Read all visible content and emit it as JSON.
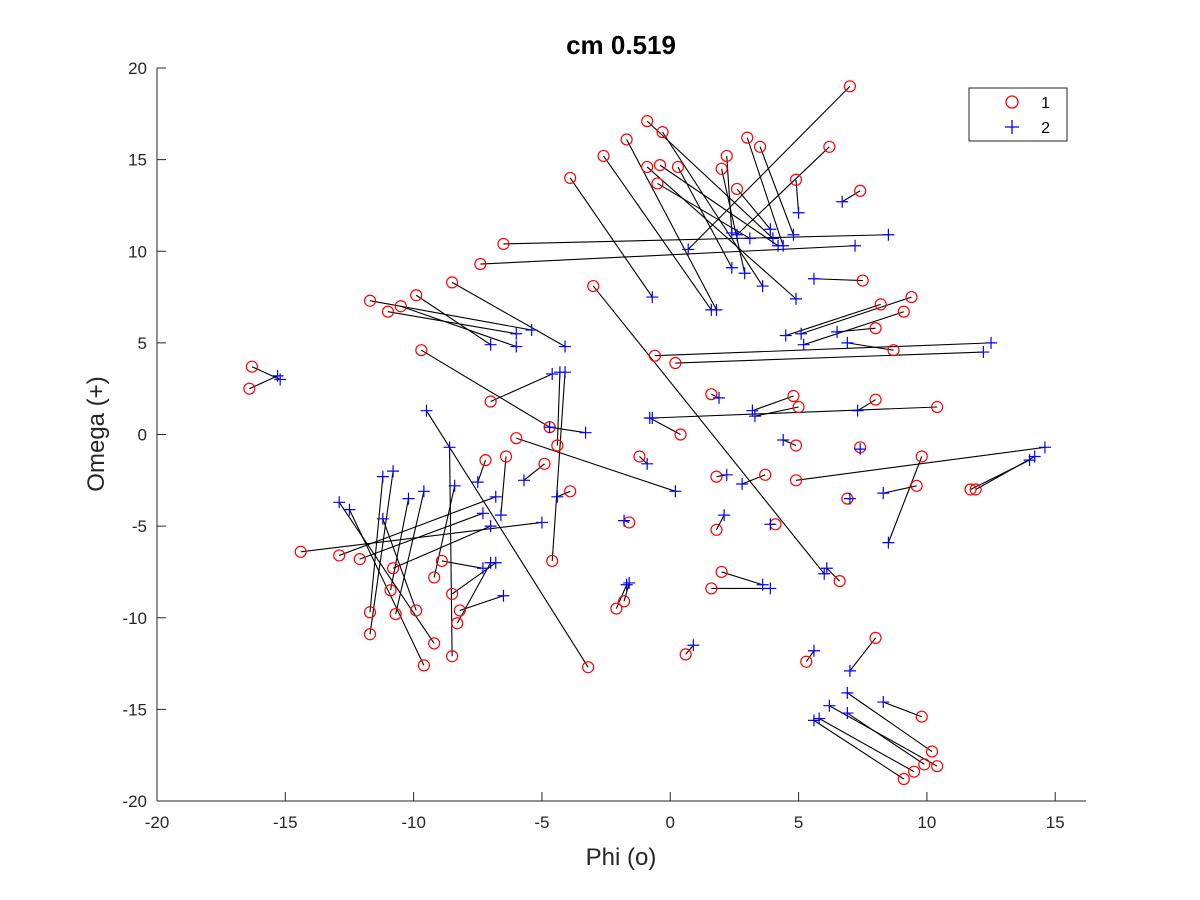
{
  "chart_data": {
    "type": "scatter",
    "title": "cm 0.519",
    "xlabel": "Phi (o)",
    "ylabel": "Omega (+)",
    "xlim": [
      -20,
      16.2
    ],
    "ylim": [
      -20,
      20
    ],
    "xticks": [
      -20,
      -15,
      -10,
      -5,
      0,
      5,
      10,
      15
    ],
    "yticks": [
      -20,
      -15,
      -10,
      -5,
      0,
      5,
      10,
      15,
      20
    ],
    "grid": false,
    "legend_position": "top-right",
    "colors": {
      "series1": "#ff0000",
      "series2": "#0000ff",
      "lines": "#000000",
      "axes": "#262626"
    },
    "series": [
      {
        "name": "1",
        "marker": "circle"
      },
      {
        "name": "2",
        "marker": "plus"
      }
    ],
    "pairs": [
      [
        7.0,
        19.0,
        0.7,
        10.1
      ],
      [
        -0.9,
        17.1,
        4.0,
        10.7
      ],
      [
        -0.3,
        16.5,
        3.6,
        8.1
      ],
      [
        -1.7,
        16.1,
        1.8,
        6.8
      ],
      [
        -2.6,
        15.2,
        1.6,
        6.8
      ],
      [
        -3.9,
        14.0,
        -0.7,
        7.5
      ],
      [
        -0.4,
        14.7,
        4.2,
        10.3
      ],
      [
        -0.9,
        14.6,
        4.9,
        7.4
      ],
      [
        -0.5,
        13.7,
        3.1,
        10.7
      ],
      [
        0.3,
        14.6,
        2.4,
        9.1
      ],
      [
        2.0,
        14.5,
        2.9,
        8.8
      ],
      [
        2.2,
        15.2,
        2.4,
        11.0
      ],
      [
        3.0,
        16.2,
        4.4,
        10.3
      ],
      [
        3.5,
        15.7,
        4.8,
        10.9
      ],
      [
        2.6,
        13.4,
        3.9,
        11.2
      ],
      [
        6.2,
        15.7,
        2.6,
        10.9
      ],
      [
        4.9,
        13.9,
        5.0,
        12.1
      ],
      [
        7.4,
        13.3,
        6.7,
        12.7
      ],
      [
        -6.5,
        10.4,
        8.5,
        10.9
      ],
      [
        -7.4,
        9.3,
        7.2,
        10.3
      ],
      [
        -3.0,
        8.1,
        6.0,
        -7.6
      ],
      [
        7.5,
        8.4,
        5.6,
        8.5
      ],
      [
        -8.5,
        8.3,
        -4.1,
        4.8
      ],
      [
        -11.7,
        7.3,
        -5.4,
        5.7
      ],
      [
        -9.9,
        7.6,
        -7.0,
        4.9
      ],
      [
        -10.5,
        7.0,
        -6.0,
        4.8
      ],
      [
        -11.0,
        6.7,
        -6.0,
        5.5
      ],
      [
        8.2,
        7.1,
        4.5,
        5.4
      ],
      [
        9.4,
        7.5,
        5.1,
        5.5
      ],
      [
        9.1,
        6.7,
        5.2,
        4.9
      ],
      [
        8.0,
        5.8,
        6.5,
        5.6
      ],
      [
        8.7,
        4.6,
        6.9,
        5.0
      ],
      [
        -0.6,
        4.3,
        12.5,
        5.0
      ],
      [
        0.2,
        3.9,
        12.2,
        4.5
      ],
      [
        -9.7,
        4.6,
        -4.7,
        0.4
      ],
      [
        -16.3,
        3.7,
        -15.2,
        3.0
      ],
      [
        -16.4,
        2.5,
        -15.3,
        3.2
      ],
      [
        -7.0,
        1.8,
        -4.6,
        3.3
      ],
      [
        -4.7,
        0.4,
        -3.3,
        0.1
      ],
      [
        -6.0,
        -0.2,
        0.2,
        -3.1
      ],
      [
        -4.4,
        -0.6,
        -4.3,
        3.4
      ],
      [
        -4.6,
        -6.9,
        -4.1,
        3.4
      ],
      [
        -3.9,
        -3.1,
        -4.4,
        -3.4
      ],
      [
        -4.9,
        -1.6,
        -5.7,
        -2.5
      ],
      [
        -6.4,
        -1.2,
        -6.6,
        -4.4
      ],
      [
        -7.2,
        -1.4,
        -7.5,
        -2.6
      ],
      [
        -3.2,
        -12.7,
        -9.5,
        1.3
      ],
      [
        0.4,
        -0.0,
        -0.8,
        0.9
      ],
      [
        10.4,
        1.5,
        -0.7,
        0.9
      ],
      [
        -1.2,
        -1.2,
        -0.9,
        -1.6
      ],
      [
        1.6,
        2.2,
        1.9,
        2.0
      ],
      [
        4.8,
        2.1,
        3.2,
        1.3
      ],
      [
        5.0,
        1.5,
        3.3,
        1.0
      ],
      [
        8.0,
        1.9,
        7.3,
        1.3
      ],
      [
        7.4,
        -0.7,
        7.4,
        -0.8
      ],
      [
        4.9,
        -0.6,
        4.4,
        -0.3
      ],
      [
        3.7,
        -2.2,
        2.8,
        -2.7
      ],
      [
        1.8,
        -2.3,
        2.2,
        -2.2
      ],
      [
        1.8,
        -5.2,
        2.1,
        -4.4
      ],
      [
        4.1,
        -4.9,
        3.9,
        -4.9
      ],
      [
        6.9,
        -3.5,
        7.0,
        -3.5
      ],
      [
        9.6,
        -2.8,
        8.3,
        -3.2
      ],
      [
        9.8,
        -1.2,
        8.5,
        -5.9
      ],
      [
        4.9,
        -2.5,
        14.6,
        -0.7
      ],
      [
        11.7,
        -3.0,
        14.0,
        -1.4
      ],
      [
        11.9,
        -3.0,
        14.2,
        -1.2
      ],
      [
        -14.4,
        -6.4,
        -5.0,
        -4.8
      ],
      [
        -12.9,
        -6.6,
        -6.8,
        -3.4
      ],
      [
        -12.1,
        -6.8,
        -7.3,
        -4.3
      ],
      [
        -11.7,
        -9.7,
        -11.2,
        -2.3
      ],
      [
        -11.7,
        -10.9,
        -10.8,
        -2.0
      ],
      [
        -10.9,
        -8.5,
        -10.2,
        -3.5
      ],
      [
        -10.8,
        -7.3,
        -7.0,
        -5.0
      ],
      [
        -10.7,
        -9.8,
        -9.6,
        -3.1
      ],
      [
        -9.9,
        -9.6,
        -11.2,
        -4.6
      ],
      [
        -9.6,
        -12.6,
        -12.5,
        -4.1
      ],
      [
        -9.2,
        -11.4,
        -12.9,
        -3.7
      ],
      [
        -9.2,
        -7.8,
        -8.4,
        -2.8
      ],
      [
        -8.9,
        -6.9,
        -7.3,
        -7.3
      ],
      [
        -8.5,
        -8.7,
        -6.8,
        -7.0
      ],
      [
        -8.5,
        -12.1,
        -8.6,
        -0.7
      ],
      [
        -8.3,
        -10.3,
        -7.0,
        -7.0
      ],
      [
        -8.2,
        -9.6,
        -6.5,
        -8.8
      ],
      [
        6.6,
        -8.0,
        6.1,
        -7.3
      ],
      [
        -1.8,
        -9.1,
        -1.6,
        -8.1
      ],
      [
        -2.1,
        -9.5,
        -1.7,
        -8.2
      ],
      [
        -1.6,
        -4.8,
        -1.8,
        -4.7
      ],
      [
        2.0,
        -7.5,
        3.6,
        -8.2
      ],
      [
        1.6,
        -8.4,
        3.9,
        -8.4
      ],
      [
        0.6,
        -12.0,
        0.9,
        -11.5
      ],
      [
        5.3,
        -12.4,
        5.6,
        -11.8
      ],
      [
        8.0,
        -11.1,
        7.0,
        -12.9
      ],
      [
        9.8,
        -15.4,
        8.3,
        -14.6
      ],
      [
        10.2,
        -17.3,
        6.9,
        -14.1
      ],
      [
        9.9,
        -18.0,
        6.9,
        -15.2
      ],
      [
        10.4,
        -18.1,
        6.2,
        -14.8
      ],
      [
        9.5,
        -18.4,
        5.8,
        -15.5
      ],
      [
        9.1,
        -18.8,
        5.6,
        -15.6
      ]
    ]
  }
}
